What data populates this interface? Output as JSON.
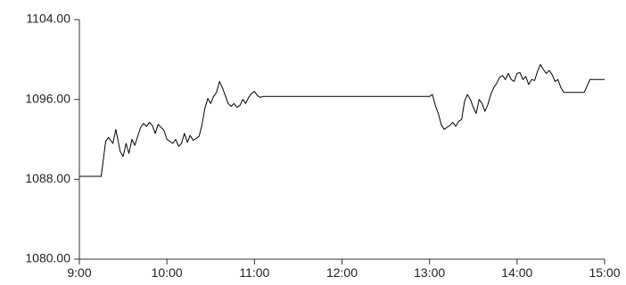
{
  "chart_data": {
    "type": "line",
    "title": "",
    "xlabel": "",
    "ylabel": "",
    "x_ticks": [
      "9:00",
      "10:00",
      "11:00",
      "12:00",
      "13:00",
      "14:00",
      "15:00"
    ],
    "y_ticks": [
      "1080.00",
      "1088.00",
      "1096.00",
      "1104.00"
    ],
    "xlim": [
      "9:00",
      "15:00"
    ],
    "ylim": [
      1080,
      1104
    ],
    "grid": false,
    "legend": "none",
    "line_color": "#000000",
    "series": [
      {
        "x": [
          "9:00",
          "9:15",
          "9:18",
          "9:20",
          "9:23",
          "9:25",
          "9:28",
          "9:30",
          "9:32",
          "9:34",
          "9:36",
          "9:38",
          "9:40",
          "9:42",
          "9:44",
          "9:46",
          "9:48",
          "9:50",
          "9:52",
          "9:54",
          "9:56",
          "9:58",
          "10:00",
          "10:02",
          "10:04",
          "10:06",
          "10:08",
          "10:10",
          "10:12",
          "10:14",
          "10:16",
          "10:18",
          "10:20",
          "10:22",
          "10:24",
          "10:26",
          "10:28",
          "10:30",
          "10:32",
          "10:34",
          "10:36",
          "10:38",
          "10:40",
          "10:42",
          "10:44",
          "10:46",
          "10:48",
          "10:50",
          "10:52",
          "10:54",
          "10:56",
          "10:58",
          "11:00",
          "11:02",
          "11:04",
          "11:06",
          "11:08",
          "11:10",
          "11:12",
          "11:14",
          "11:16",
          "11:18",
          "11:20",
          "11:22",
          "11:24",
          "11:26",
          "11:28",
          "11:30",
          "13:00",
          "13:02",
          "13:04",
          "13:06",
          "13:08",
          "13:10",
          "13:12",
          "13:14",
          "13:16",
          "13:18",
          "13:20",
          "13:22",
          "13:24",
          "13:26",
          "13:28",
          "13:30",
          "13:32",
          "13:34",
          "13:36",
          "13:38",
          "13:40",
          "13:42",
          "13:44",
          "13:46",
          "13:48",
          "13:50",
          "13:52",
          "13:54",
          "13:56",
          "13:58",
          "14:00",
          "14:02",
          "14:04",
          "14:06",
          "14:08",
          "14:10",
          "14:12",
          "14:14",
          "14:16",
          "14:18",
          "14:20",
          "14:22",
          "14:24",
          "14:26",
          "14:28",
          "14:30",
          "14:32",
          "14:35",
          "14:40",
          "14:45",
          "14:46",
          "14:50",
          "14:55",
          "15:00"
        ],
        "y": [
          1088.3,
          1088.3,
          1091.8,
          1092.2,
          1091.6,
          1093.0,
          1090.8,
          1090.3,
          1091.6,
          1090.6,
          1092.0,
          1091.4,
          1092.3,
          1093.2,
          1093.6,
          1093.3,
          1093.7,
          1093.4,
          1092.6,
          1093.5,
          1093.2,
          1092.9,
          1092.0,
          1091.8,
          1091.6,
          1092.0,
          1091.3,
          1091.6,
          1092.6,
          1091.7,
          1092.4,
          1091.9,
          1092.1,
          1092.3,
          1093.4,
          1095.1,
          1096.1,
          1095.6,
          1096.3,
          1096.7,
          1097.8,
          1097.2,
          1096.4,
          1095.6,
          1095.3,
          1095.6,
          1095.2,
          1095.4,
          1096.0,
          1095.6,
          1096.2,
          1096.6,
          1096.8,
          1096.4,
          1096.2,
          1096.3,
          1096.3,
          1096.3,
          1096.3,
          1096.3,
          1096.3,
          1096.3,
          1096.3,
          1096.3,
          1096.3,
          1096.3,
          1096.3,
          1096.3,
          1096.3,
          1096.5,
          1095.4,
          1094.6,
          1093.5,
          1093.0,
          1093.2,
          1093.4,
          1093.7,
          1093.3,
          1093.8,
          1094.0,
          1095.8,
          1096.5,
          1096.0,
          1095.2,
          1094.6,
          1096.0,
          1095.6,
          1094.8,
          1095.5,
          1096.5,
          1097.2,
          1097.6,
          1098.2,
          1098.4,
          1098.0,
          1098.6,
          1098.0,
          1097.8,
          1098.6,
          1098.7,
          1098.0,
          1098.3,
          1097.5,
          1098.0,
          1097.9,
          1098.8,
          1099.5,
          1099.0,
          1098.6,
          1098.9,
          1098.5,
          1097.8,
          1098.0,
          1097.2,
          1096.7,
          1096.7,
          1096.7,
          1096.7,
          1096.7,
          1098.0,
          1098.0,
          1098.0
        ]
      }
    ]
  }
}
